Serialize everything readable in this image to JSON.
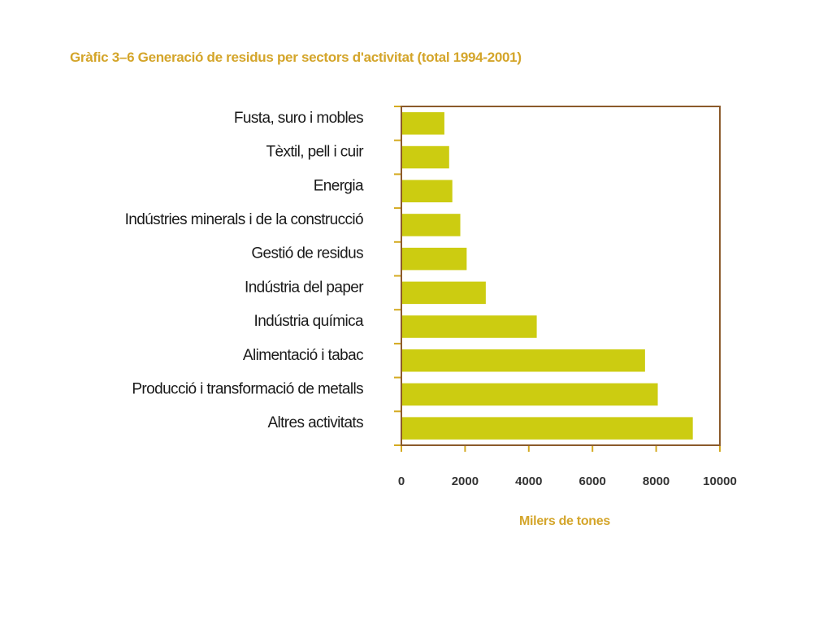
{
  "colors": {
    "bar": "#cccc11",
    "frame": "#8b5a2b",
    "tick": "#d4aa20",
    "title": "#d4a52a",
    "category_text": "#1a1a1a",
    "tick_text": "#333333"
  },
  "chart_data": {
    "type": "bar",
    "orientation": "horizontal",
    "title": "Gràfic 3–6 Generació de residus per sectors d'activitat (total 1994-2001)",
    "xlabel": "Milers de tones",
    "ylabel": "",
    "xlim": [
      0,
      10000
    ],
    "xticks": [
      "0",
      "2000",
      "4000",
      "6000",
      "8000",
      "10000"
    ],
    "grid": false,
    "legend": "none",
    "categories": [
      "Fusta, suro i mobles",
      "Tèxtil, pell i cuir",
      "Energia",
      "Indústries minerals i de la construcció",
      "Gestió de residus",
      "Indústria del paper",
      "Indústria química",
      "Alimentació i tabac",
      "Producció i transformació de metalls",
      "Altres activitats"
    ],
    "values": [
      1350,
      1500,
      1600,
      1850,
      2050,
      2650,
      4250,
      7650,
      8050,
      9150
    ]
  }
}
